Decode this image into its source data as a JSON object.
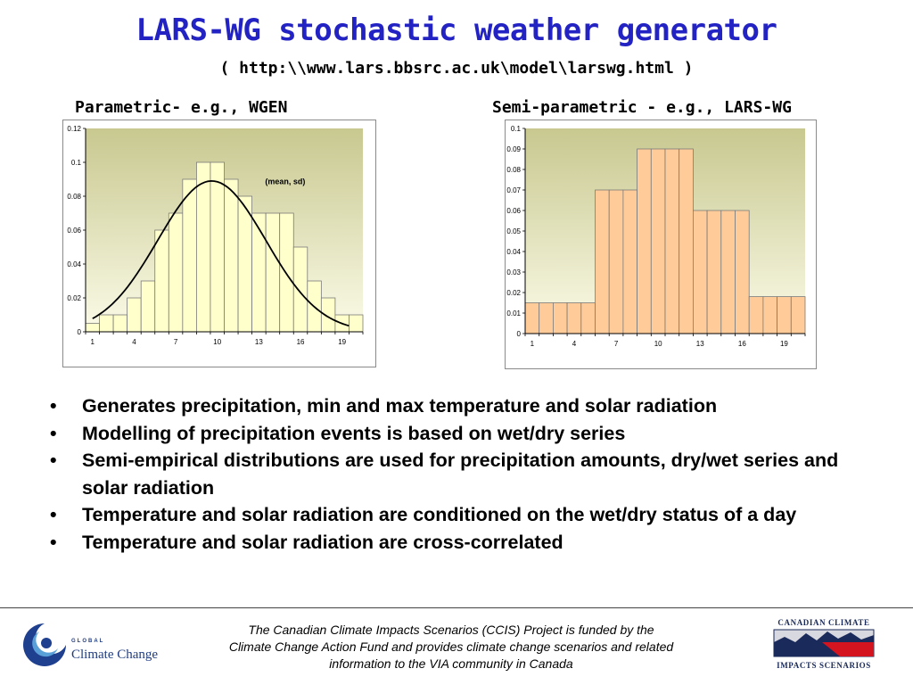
{
  "slide": {
    "title": "LARS-WG stochastic weather generator",
    "url": "( http:\\\\www.lars.bbsrc.ac.uk\\model\\larswg.html )"
  },
  "charts": {
    "left_heading": "Parametric- e.g., WGEN",
    "right_heading": "Semi-parametric - e.g., LARS-WG"
  },
  "chart_data": [
    {
      "type": "bar",
      "x": [
        1,
        2,
        3,
        4,
        5,
        6,
        7,
        8,
        9,
        10,
        11,
        12,
        13,
        14,
        15,
        16,
        17,
        18,
        19,
        20
      ],
      "x_tick_labels": [
        "1",
        "4",
        "7",
        "10",
        "13",
        "16",
        "19"
      ],
      "values": [
        0.005,
        0.01,
        0.01,
        0.02,
        0.03,
        0.06,
        0.07,
        0.09,
        0.1,
        0.1,
        0.09,
        0.08,
        0.07,
        0.07,
        0.07,
        0.05,
        0.03,
        0.02,
        0.01,
        0.01
      ],
      "ylim": [
        0,
        0.12
      ],
      "y_ticks": [
        0,
        0.02,
        0.04,
        0.06,
        0.08,
        0.1,
        0.12
      ],
      "y_tick_labels": [
        "0",
        "0.02",
        "0.04",
        "0.06",
        "0.08",
        "0.1",
        "0.12"
      ],
      "overlay": {
        "type": "normal_curve",
        "mean": 9.6,
        "sd": 3.9,
        "peak": 0.089
      },
      "annotation": "(mean, sd)",
      "bar_color": "#ffffcc",
      "background": "gradient-yellow"
    },
    {
      "type": "bar",
      "x": [
        1,
        2,
        3,
        4,
        5,
        6,
        7,
        8,
        9,
        10,
        11,
        12,
        13,
        14,
        15,
        16,
        17,
        18,
        19,
        20
      ],
      "x_tick_labels": [
        "1",
        "4",
        "7",
        "10",
        "13",
        "16",
        "19"
      ],
      "values": [
        0.015,
        0.015,
        0.015,
        0.015,
        0.015,
        0.07,
        0.07,
        0.07,
        0.09,
        0.09,
        0.09,
        0.09,
        0.06,
        0.06,
        0.06,
        0.06,
        0.018,
        0.018,
        0.018,
        0.018
      ],
      "ylim": [
        0,
        0.1
      ],
      "y_ticks": [
        0,
        0.01,
        0.02,
        0.03,
        0.04,
        0.05,
        0.06,
        0.07,
        0.08,
        0.09,
        0.1
      ],
      "y_tick_labels": [
        "0",
        "0.01",
        "0.02",
        "0.03",
        "0.04",
        "0.05",
        "0.06",
        "0.07",
        "0.08",
        "0.09",
        "0.1"
      ],
      "bar_color": "#ffcc99",
      "background": "gradient-yellow"
    }
  ],
  "bullets": [
    "Generates precipitation, min and max temperature and solar radiation",
    "Modelling of precipitation events is based on wet/dry series",
    "Semi-empirical distributions are used for precipitation amounts, dry/wet series and solar radiation",
    "Temperature and solar radiation are conditioned on the wet/dry status of a day",
    "Temperature and solar radiation are cross-correlated"
  ],
  "bullet_symbol": "•",
  "footer": {
    "lines": [
      "The Canadian Climate Impacts Scenarios (CCIS) Project is funded by the",
      "Climate Change Action Fund and provides climate change scenarios and related",
      "information to the VIA community in Canada"
    ]
  },
  "logos": {
    "left": {
      "small": "GLOBAL",
      "big": "Climate Change"
    },
    "right": {
      "top": "CANADIAN CLIMATE",
      "bottom": "IMPACTS SCENARIOS"
    }
  }
}
